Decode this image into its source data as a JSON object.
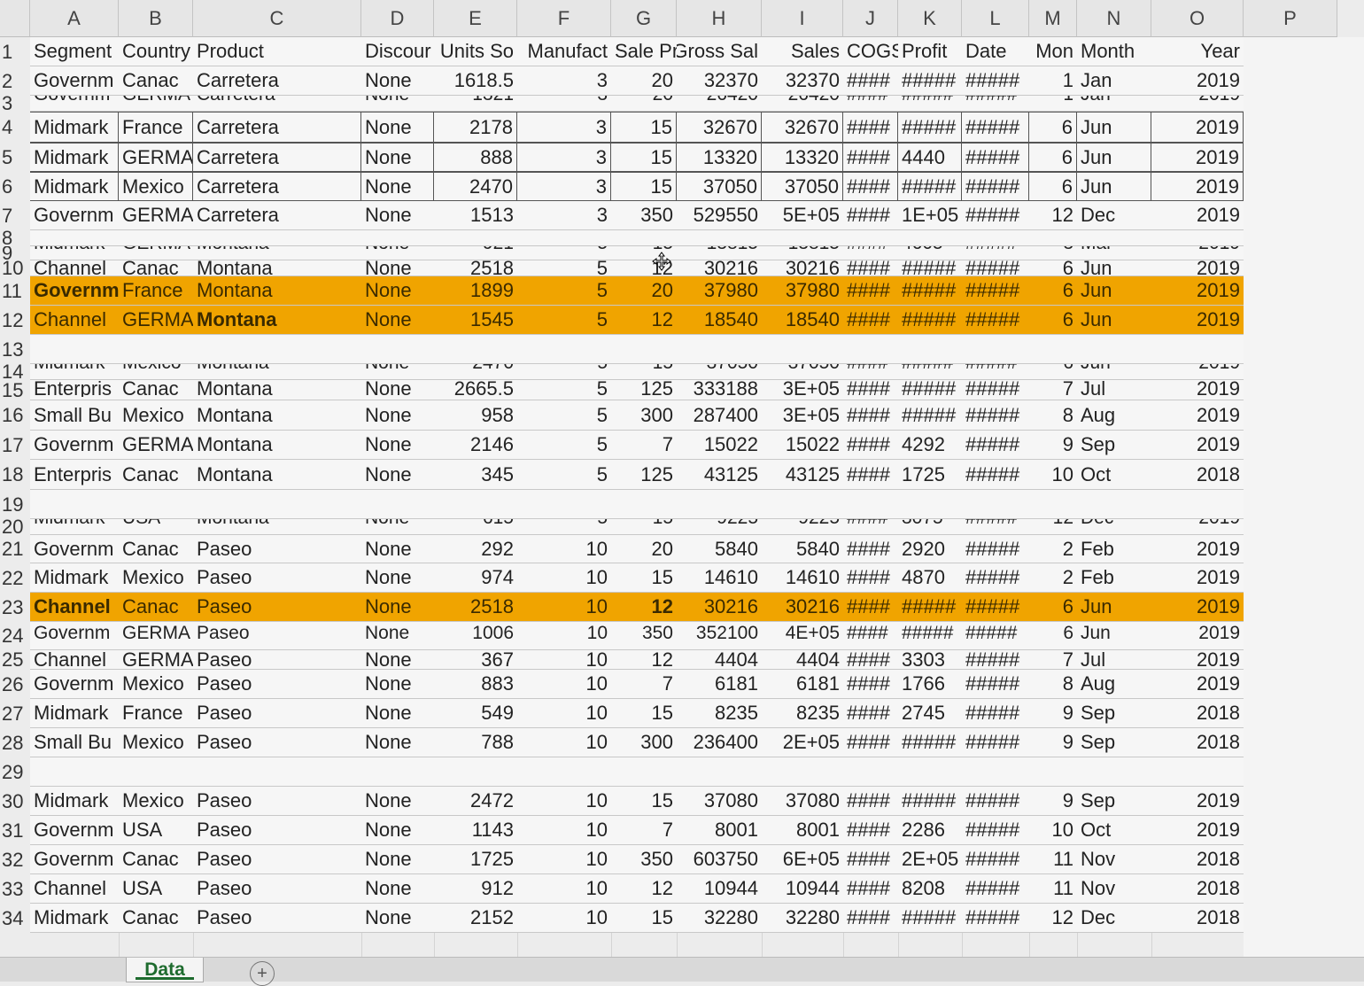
{
  "columns": [
    {
      "letter": "A",
      "label": "A"
    },
    {
      "letter": "B",
      "label": "B"
    },
    {
      "letter": "C",
      "label": "C"
    },
    {
      "letter": "D",
      "label": "D"
    },
    {
      "letter": "E",
      "label": "E"
    },
    {
      "letter": "F",
      "label": "F"
    },
    {
      "letter": "G",
      "label": "G"
    },
    {
      "letter": "H",
      "label": "H"
    },
    {
      "letter": "I",
      "label": "I"
    },
    {
      "letter": "J",
      "label": "J"
    },
    {
      "letter": "K",
      "label": "K"
    },
    {
      "letter": "L",
      "label": "L"
    },
    {
      "letter": "M",
      "label": "M"
    },
    {
      "letter": "N",
      "label": "N"
    },
    {
      "letter": "O",
      "label": "O"
    },
    {
      "letter": "P",
      "label": "P"
    }
  ],
  "rows": [
    {
      "num": "1",
      "style": "normal",
      "cells": [
        "Segment",
        "Country",
        "Product",
        "Discour",
        "Units So",
        "Manufact",
        "Sale Pr",
        "Gross Sal",
        "Sales",
        "COGS",
        "Profit",
        "Date",
        "Mon",
        "Month",
        "Year"
      ]
    },
    {
      "num": "2",
      "style": "normal",
      "cells": [
        "Governm",
        "Canac",
        "Carretera",
        "None",
        "1618.5",
        "3",
        "20",
        "32370",
        "32370",
        "####",
        "#####",
        "#####",
        "1",
        "Jan",
        "2019"
      ]
    },
    {
      "num": "3",
      "style": "squeezed",
      "cells": [
        "Governm",
        "GERMA",
        "Carretera",
        "None",
        "1321",
        "3",
        "20",
        "26420",
        "26420",
        "####",
        "#####",
        "#####",
        "1",
        "Jan",
        "2019"
      ]
    },
    {
      "num": "4",
      "style": "boxed",
      "cells": [
        "Midmark",
        "France",
        "Carretera",
        "None",
        "2178",
        "3",
        "15",
        "32670",
        "32670",
        "####",
        "#####",
        "#####",
        "6",
        "Jun",
        "2019"
      ]
    },
    {
      "num": "5",
      "style": "boxed",
      "cells": [
        "Midmark",
        "GERMA",
        "Carretera",
        "None",
        "888",
        "3",
        "15",
        "13320",
        "13320",
        "####",
        "4440",
        "#####",
        "6",
        "Jun",
        "2019"
      ]
    },
    {
      "num": "6",
      "style": "boxed",
      "cells": [
        "Midmark",
        "Mexico",
        "Carretera",
        "None",
        "2470",
        "3",
        "15",
        "37050",
        "37050",
        "####",
        "#####",
        "#####",
        "6",
        "Jun",
        "2019"
      ]
    },
    {
      "num": "7",
      "style": "normal",
      "cells": [
        "Governm",
        "GERMA",
        "Carretera",
        "None",
        "1513",
        "3",
        "350",
        "529550",
        "5E+05",
        "####",
        "1E+05",
        "#####",
        "12",
        "Dec",
        "2019"
      ]
    },
    {
      "num": "8",
      "style": "normal",
      "cells": [
        "",
        "",
        "",
        "",
        "",
        "",
        "",
        "",
        "",
        "",
        "",
        "",
        "",
        "",
        ""
      ]
    },
    {
      "num": "9",
      "style": "squeezed",
      "cells": [
        "Midmark",
        "GERMA",
        "Montana",
        "None",
        "921",
        "5",
        "15",
        "13815",
        "13815",
        "####",
        "4605",
        "#####",
        "3",
        "Mar",
        "2019"
      ]
    },
    {
      "num": "10",
      "style": "normal",
      "cells": [
        "Channel",
        "Canac",
        "Montana",
        "None",
        "2518",
        "5",
        "12",
        "30216",
        "30216",
        "####",
        "#####",
        "#####",
        "6",
        "Jun",
        "2019"
      ]
    },
    {
      "num": "11",
      "style": "hl",
      "cells": [
        "Governm",
        "France",
        "Montana",
        "None",
        "1899",
        "5",
        "20",
        "37980",
        "37980",
        "####",
        "#####",
        "#####",
        "6",
        "Jun",
        "2019"
      ]
    },
    {
      "num": "12",
      "style": "hl",
      "cells": [
        "Channel",
        "GERMA",
        "Montana",
        "None",
        "1545",
        "5",
        "12",
        "18540",
        "18540",
        "####",
        "#####",
        "#####",
        "6",
        "Jun",
        "2019"
      ]
    },
    {
      "num": "13",
      "style": "normal",
      "cells": [
        "",
        "",
        "",
        "",
        "",
        "",
        "",
        "",
        "",
        "",
        "",
        "",
        "",
        "",
        ""
      ]
    },
    {
      "num": "14",
      "style": "squeezed",
      "cells": [
        "Midmark",
        "Mexico",
        "Montana",
        "None",
        "2470",
        "5",
        "15",
        "37050",
        "37050",
        "####",
        "#####",
        "#####",
        "6",
        "Jun",
        "2019"
      ]
    },
    {
      "num": "15",
      "style": "squeezed2",
      "cells": [
        "Enterpris",
        "Canac",
        "Montana",
        "None",
        "2665.5",
        "5",
        "125",
        "333188",
        "3E+05",
        "####",
        "#####",
        "#####",
        "7",
        "Jul",
        "2019"
      ]
    },
    {
      "num": "16",
      "style": "normal",
      "cells": [
        "Small Bu",
        "Mexico",
        "Montana",
        "None",
        "958",
        "5",
        "300",
        "287400",
        "3E+05",
        "####",
        "#####",
        "#####",
        "8",
        "Aug",
        "2019"
      ]
    },
    {
      "num": "17",
      "style": "normal",
      "cells": [
        "Governm",
        "GERMA",
        "Montana",
        "None",
        "2146",
        "5",
        "7",
        "15022",
        "15022",
        "####",
        "4292",
        "#####",
        "9",
        "Sep",
        "2019"
      ]
    },
    {
      "num": "18",
      "style": "normal",
      "cells": [
        "Enterpris",
        "Canac",
        "Montana",
        "None",
        "345",
        "5",
        "125",
        "43125",
        "43125",
        "####",
        "1725",
        "#####",
        "10",
        "Oct",
        "2018"
      ]
    },
    {
      "num": "19",
      "style": "normal",
      "cells": [
        "",
        "",
        "",
        "",
        "",
        "",
        "",
        "",
        "",
        "",
        "",
        "",
        "",
        "",
        ""
      ]
    },
    {
      "num": "20",
      "style": "squeezed",
      "cells": [
        "Midmark",
        "USA",
        "Montana",
        "None",
        "615",
        "5",
        "15",
        "9225",
        "9225",
        "####",
        "3075",
        "#####",
        "12",
        "Dec",
        "2019"
      ]
    },
    {
      "num": "21",
      "style": "normal",
      "cells": [
        "Governm",
        "Canac",
        "Paseo",
        "None",
        "292",
        "10",
        "20",
        "5840",
        "5840",
        "####",
        "2920",
        "#####",
        "2",
        "Feb",
        "2019"
      ]
    },
    {
      "num": "22",
      "style": "normal",
      "cells": [
        "Midmark",
        "Mexico",
        "Paseo",
        "None",
        "974",
        "10",
        "15",
        "14610",
        "14610",
        "####",
        "4870",
        "#####",
        "2",
        "Feb",
        "2019"
      ]
    },
    {
      "num": "23",
      "style": "hl",
      "cells": [
        "Channel",
        "Canac",
        "Paseo",
        "None",
        "2518",
        "10",
        "12",
        "30216",
        "30216",
        "####",
        "#####",
        "#####",
        "6",
        "Jun",
        "2019"
      ]
    },
    {
      "num": "24",
      "style": "squeezed",
      "cells": [
        "Governm",
        "GERMA",
        "Paseo",
        "None",
        "1006",
        "10",
        "350",
        "352100",
        "4E+05",
        "####",
        "#####",
        "#####",
        "6",
        "Jun",
        "2019"
      ]
    },
    {
      "num": "25",
      "style": "normal",
      "cells": [
        "Channel",
        "GERMA",
        "Paseo",
        "None",
        "367",
        "10",
        "12",
        "4404",
        "4404",
        "####",
        "3303",
        "#####",
        "7",
        "Jul",
        "2019"
      ]
    },
    {
      "num": "26",
      "style": "normal",
      "cells": [
        "Governm",
        "Mexico",
        "Paseo",
        "None",
        "883",
        "10",
        "7",
        "6181",
        "6181",
        "####",
        "1766",
        "#####",
        "8",
        "Aug",
        "2019"
      ]
    },
    {
      "num": "27",
      "style": "normal",
      "cells": [
        "Midmark",
        "France",
        "Paseo",
        "None",
        "549",
        "10",
        "15",
        "8235",
        "8235",
        "####",
        "2745",
        "#####",
        "9",
        "Sep",
        "2018"
      ]
    },
    {
      "num": "28",
      "style": "normal",
      "cells": [
        "Small Bu",
        "Mexico",
        "Paseo",
        "None",
        "788",
        "10",
        "300",
        "236400",
        "2E+05",
        "####",
        "#####",
        "#####",
        "9",
        "Sep",
        "2018"
      ]
    },
    {
      "num": "29",
      "style": "normal",
      "cells": [
        "",
        "",
        "",
        "",
        "",
        "",
        "",
        "",
        "",
        "",
        "",
        "",
        "",
        "",
        ""
      ]
    },
    {
      "num": "30",
      "style": "normal",
      "cells": [
        "Midmark",
        "Mexico",
        "Paseo",
        "None",
        "2472",
        "10",
        "15",
        "37080",
        "37080",
        "####",
        "#####",
        "#####",
        "9",
        "Sep",
        "2019"
      ]
    },
    {
      "num": "31",
      "style": "normal",
      "cells": [
        "Governm",
        "USA",
        "Paseo",
        "None",
        "1143",
        "10",
        "7",
        "8001",
        "8001",
        "####",
        "2286",
        "#####",
        "10",
        "Oct",
        "2019"
      ]
    },
    {
      "num": "32",
      "style": "normal",
      "cells": [
        "Governm",
        "Canac",
        "Paseo",
        "None",
        "1725",
        "10",
        "350",
        "603750",
        "6E+05",
        "####",
        "2E+05",
        "#####",
        "11",
        "Nov",
        "2018"
      ]
    },
    {
      "num": "33",
      "style": "normal",
      "cells": [
        "Channel",
        "USA",
        "Paseo",
        "None",
        "912",
        "10",
        "12",
        "10944",
        "10944",
        "####",
        "8208",
        "#####",
        "11",
        "Nov",
        "2018"
      ]
    },
    {
      "num": "34",
      "style": "normal",
      "cells": [
        "Midmark",
        "Canac",
        "Paseo",
        "None",
        "2152",
        "10",
        "15",
        "32280",
        "32280",
        "####",
        "#####",
        "#####",
        "12",
        "Dec",
        "2018"
      ]
    }
  ],
  "sheet_tabs": [
    {
      "label": "Data",
      "active": true
    }
  ],
  "add_sheet_label": "+",
  "colors": {
    "highlight": "#f0a400",
    "tab_accent": "#1e6b2e"
  }
}
